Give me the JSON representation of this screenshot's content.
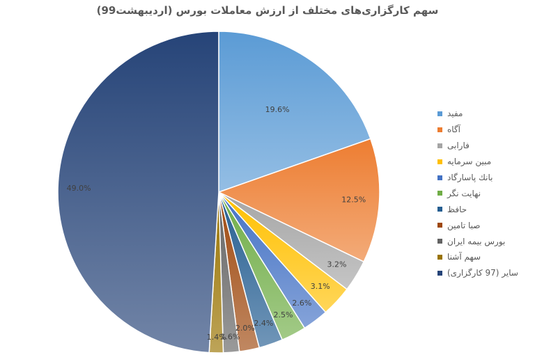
{
  "chart_data": {
    "type": "pie",
    "title": "سهم کارگزاری‌های مختلف از ارزش معاملات بورس (اردیبهشت99)",
    "legend_position": "right",
    "slices": [
      {
        "name": "مفید",
        "value": 19.6,
        "label": "19.6%",
        "color": "#5b9bd5"
      },
      {
        "name": "آگاه",
        "value": 12.5,
        "label": "12.5%",
        "color": "#ed7d31"
      },
      {
        "name": "فارابی",
        "value": 3.2,
        "label": "3.2%",
        "color": "#a5a5a5"
      },
      {
        "name": "مبین سرمایه",
        "value": 3.1,
        "label": "3.1%",
        "color": "#ffc000"
      },
      {
        "name": "بانك پاسارگاد",
        "value": 2.6,
        "label": "2.6%",
        "color": "#4472c4"
      },
      {
        "name": "نهایت نگر",
        "value": 2.5,
        "label": "2.5%",
        "color": "#70ad47"
      },
      {
        "name": "حافظ",
        "value": 2.4,
        "label": "2.4%",
        "color": "#255e91"
      },
      {
        "name": "صبا تامین",
        "value": 2.0,
        "label": "2.0%",
        "color": "#9e480e"
      },
      {
        "name": "بورس بیمه ایران",
        "value": 1.6,
        "label": "1.6%",
        "color": "#636363"
      },
      {
        "name": "سهم آشنا",
        "value": 1.4,
        "label": "1.4%",
        "color": "#997300"
      },
      {
        "name": "سایر (97 کارگزاری)",
        "value": 49.0,
        "label": "49.0%",
        "color": "#264478"
      }
    ]
  }
}
